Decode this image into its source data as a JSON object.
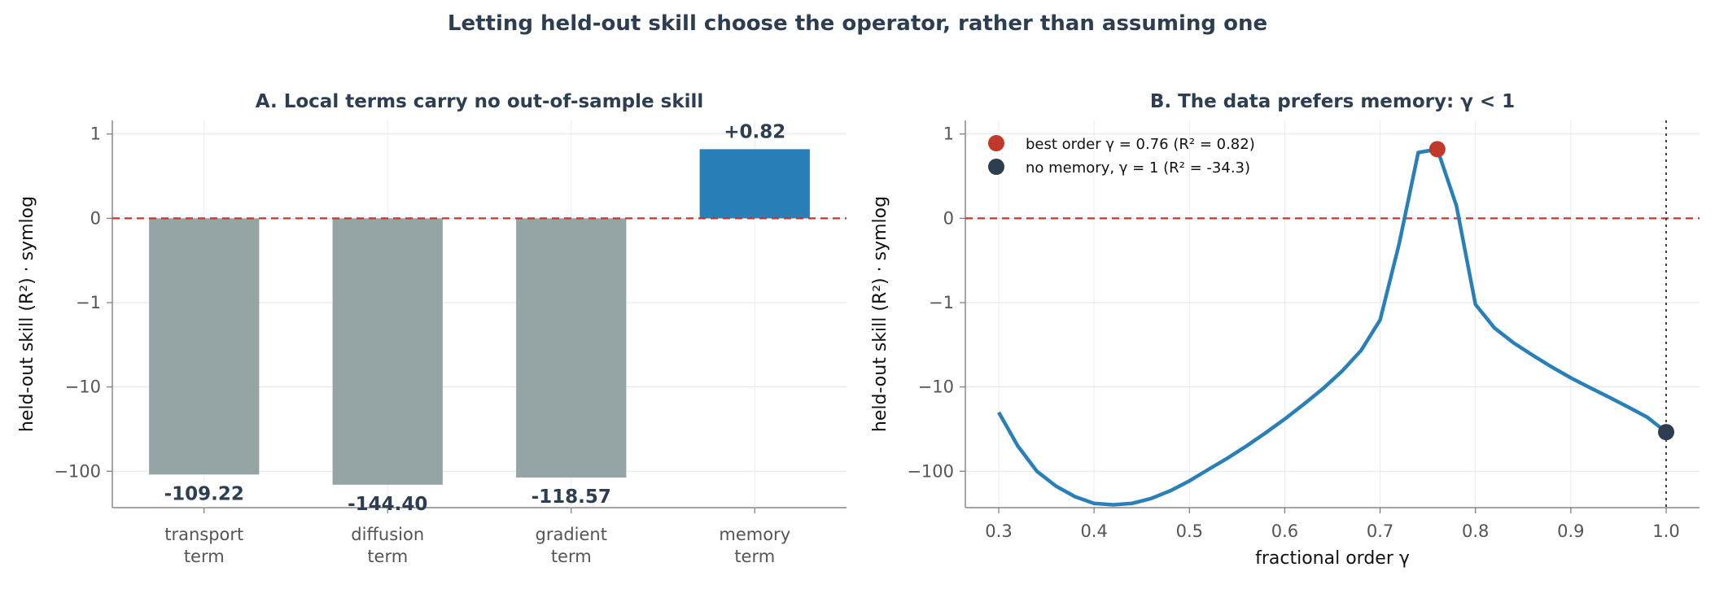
{
  "title": "Letting held-out skill choose the operator, rather than assuming one",
  "chart_data": [
    {
      "type": "bar",
      "title": "A.  Local terms carry no out-of-sample skill",
      "ylabel": "held-out skill  (R²)   ·   symlog",
      "yscale": "symlog",
      "categories": [
        [
          "transport",
          "term"
        ],
        [
          "diffusion",
          "term"
        ],
        [
          "gradient",
          "term"
        ],
        [
          "memory",
          "term"
        ]
      ],
      "values": [
        -109.22,
        -144.4,
        -118.57,
        0.82
      ],
      "value_labels": [
        "-109.22",
        "-144.40",
        "-118.57",
        "+0.82"
      ],
      "colors": [
        "#95a5a6",
        "#95a5a6",
        "#95a5a6",
        "#2980b9"
      ],
      "yticks": [
        1,
        0,
        -1,
        -10,
        -100
      ],
      "ytick_labels": [
        "1",
        "0",
        "−1",
        "−10",
        "−100"
      ],
      "ylim": [
        -270,
        1.45
      ],
      "reference_line": 0,
      "grid": true
    },
    {
      "type": "line",
      "title": "B.  The data prefers memory:  γ < 1",
      "xlabel": "fractional order  γ",
      "ylabel": "held-out skill  (R²)   ·   symlog",
      "yscale": "symlog",
      "xlim": [
        0.265,
        1.035
      ],
      "ylim": [
        -270,
        1.45
      ],
      "xticks": [
        0.3,
        0.4,
        0.5,
        0.6,
        0.7,
        0.8,
        0.9,
        1.0
      ],
      "xtick_labels": [
        "0.3",
        "0.4",
        "0.5",
        "0.6",
        "0.7",
        "0.8",
        "0.9",
        "1.0"
      ],
      "yticks": [
        1,
        0,
        -1,
        -10,
        -100
      ],
      "ytick_labels": [
        "1",
        "0",
        "−1",
        "−10",
        "−100"
      ],
      "series": [
        {
          "color": "#2980b9",
          "x": [
            0.3,
            0.32,
            0.34,
            0.36,
            0.38,
            0.4,
            0.42,
            0.44,
            0.46,
            0.48,
            0.5,
            0.52,
            0.54,
            0.56,
            0.58,
            0.6,
            0.62,
            0.64,
            0.66,
            0.68,
            0.7,
            0.72,
            0.74,
            0.76,
            0.78,
            0.8,
            0.82,
            0.84,
            0.86,
            0.88,
            0.9,
            0.92,
            0.94,
            0.96,
            0.98,
            1.0
          ],
          "y": [
            -20,
            -50,
            -100,
            -150,
            -200,
            -240,
            -250,
            -240,
            -210,
            -170,
            -130,
            -95,
            -70,
            -50,
            -35,
            -24,
            -16,
            -10.5,
            -6.5,
            -3.7,
            -1.6,
            -0.3,
            0.78,
            0.82,
            0.15,
            -1.05,
            -2.0,
            -3.0,
            -4.2,
            -5.8,
            -7.8,
            -10.2,
            -13.2,
            -17.3,
            -22.8,
            -34.3
          ]
        }
      ],
      "markers": [
        {
          "x": 0.76,
          "y": 0.82,
          "color": "#c0392b",
          "label": "best order  γ = 0.76  (R² = 0.82)"
        },
        {
          "x": 1.0,
          "y": -34.3,
          "color": "#2c3e50",
          "label": "no memory,  γ = 1  (R² = -34.3)"
        }
      ],
      "reference_line": 0,
      "vline": 1.0,
      "legend": "top-left",
      "grid": true
    }
  ]
}
